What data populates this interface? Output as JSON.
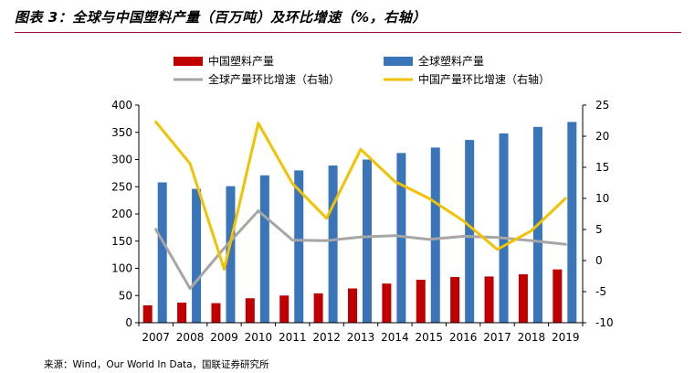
{
  "figure": {
    "title": "图表 3：全球与中国塑料产量（百万吨）及环比增速（%，右轴）",
    "source": "来源：Wind，Our World In Data，国联证券研究所"
  },
  "chart_data": {
    "type": "bar",
    "categories": [
      "2007",
      "2008",
      "2009",
      "2010",
      "2011",
      "2012",
      "2013",
      "2014",
      "2015",
      "2016",
      "2017",
      "2018",
      "2019"
    ],
    "series": [
      {
        "name": "中国塑料产量",
        "kind": "bar",
        "axis": "left",
        "color": "#c00000",
        "values": [
          32,
          37,
          36,
          45,
          50,
          54,
          63,
          72,
          79,
          84,
          85,
          89,
          98
        ]
      },
      {
        "name": "全球塑料产量",
        "kind": "bar",
        "axis": "left",
        "color": "#3a74b9",
        "values": [
          258,
          246,
          251,
          271,
          280,
          289,
          300,
          312,
          322,
          336,
          348,
          360,
          369
        ]
      },
      {
        "name": "全球产量环比增速（右轴）",
        "kind": "line",
        "axis": "right",
        "color": "#a6a6a6",
        "values": [
          5.0,
          -4.5,
          2.0,
          8.0,
          3.3,
          3.2,
          3.8,
          4.0,
          3.4,
          3.9,
          3.7,
          3.2,
          2.6
        ]
      },
      {
        "name": "中国产量环比增速（右轴）",
        "kind": "line",
        "axis": "right",
        "color": "#f2c200",
        "values": [
          22.3,
          15.6,
          -1.4,
          22.1,
          12.4,
          6.8,
          17.9,
          12.7,
          10.0,
          6.4,
          1.8,
          4.8,
          10.0
        ]
      }
    ],
    "ylim_left": [
      0,
      400
    ],
    "yticks_left": [
      "0",
      "50",
      "100",
      "150",
      "200",
      "250",
      "300",
      "350",
      "400"
    ],
    "ylim_right": [
      -10,
      25
    ],
    "yticks_right": [
      "-10",
      "-5",
      "0",
      "5",
      "10",
      "15",
      "20",
      "25"
    ],
    "legend_position": "top",
    "grid": false
  }
}
